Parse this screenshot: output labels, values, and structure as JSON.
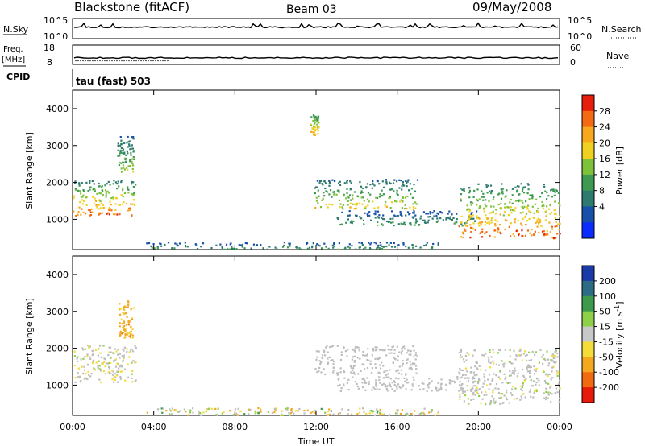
{
  "header": {
    "station": "Blackstone (fitACF)",
    "beam": "Beam 03",
    "date": "09/May/2008"
  },
  "strip_labels": {
    "nsky": "N.Sky",
    "nsearch": "N.Search",
    "freq_line1": "Freq.",
    "freq_line2": "[MHz]",
    "nave": "Nave",
    "cpid": "CPID",
    "cpid_value": "tau (fast) 503",
    "noise_left_top": "10^5",
    "noise_left_bottom": "10^0",
    "noise_right_top": "10^5",
    "noise_right_bottom": "10^0",
    "freq_left_top": "18",
    "freq_left_bottom": "8",
    "nave_right_top": "60",
    "nave_right_bottom": "0"
  },
  "colors": {
    "power_scale": [
      "#0a2cff",
      "#1650a8",
      "#2d7a6e",
      "#3e9a52",
      "#7ec23c",
      "#f0d020",
      "#f7a81c",
      "#f46a12",
      "#e81e0c"
    ],
    "velocity_scale": [
      "#1a3aa8",
      "#2b6c84",
      "#3d9a4c",
      "#8ed048",
      "#c8c8c8",
      "#f4dc3a",
      "#f4a820",
      "#f26a10",
      "#e81a0a"
    ],
    "ground_scatter": "#bdbdbd"
  },
  "chart_data": [
    {
      "type": "heatmap",
      "title": "Power",
      "xlabel": "",
      "ylabel": "Slant Range [km]",
      "x_ticks": [
        "00:00",
        "04:00",
        "08:00",
        "12:00",
        "16:00",
        "20:00",
        "00:00"
      ],
      "y_ticks": [
        "1000",
        "2000",
        "3000",
        "4000"
      ],
      "xlim": [
        0,
        24
      ],
      "ylim": [
        180,
        4500
      ],
      "colorbar": {
        "label": "Power [dB]",
        "ticks": [
          "4",
          "8",
          "12",
          "16",
          "20",
          "24",
          "28"
        ],
        "range": [
          0,
          30
        ]
      },
      "features": [
        {
          "name": "morning-arc",
          "t": [
            0.0,
            3.1
          ],
          "range_km": [
            1100,
            2100
          ],
          "power_db": [
            8,
            30
          ]
        },
        {
          "name": "high-range-streak",
          "t": [
            2.2,
            3.0
          ],
          "range_km": [
            2300,
            3300
          ],
          "power_db": [
            6,
            18
          ]
        },
        {
          "name": "noon-spike",
          "t": [
            11.7,
            12.1
          ],
          "range_km": [
            3300,
            3900
          ],
          "power_db": [
            10,
            24
          ]
        },
        {
          "name": "afternoon-band",
          "t": [
            11.9,
            17.0
          ],
          "range_km": [
            1300,
            2100
          ],
          "power_db": [
            6,
            22
          ]
        },
        {
          "name": "lower-bands",
          "t": [
            13.0,
            20.0
          ],
          "range_km": [
            850,
            1250
          ],
          "power_db": [
            4,
            14
          ]
        },
        {
          "name": "evening-band",
          "t": [
            19.0,
            24.0
          ],
          "range_km": [
            500,
            2000
          ],
          "power_db": [
            8,
            30
          ]
        },
        {
          "name": "near-range-strip",
          "t": [
            3.5,
            18.0
          ],
          "range_km": [
            200,
            400
          ],
          "power_db": [
            4,
            14
          ]
        }
      ]
    },
    {
      "type": "heatmap",
      "title": "Velocity",
      "xlabel": "Time UT",
      "ylabel": "Slant Range [km]",
      "x_ticks": [
        "00:00",
        "04:00",
        "08:00",
        "12:00",
        "16:00",
        "20:00",
        "00:00"
      ],
      "y_ticks": [
        "1000",
        "2000",
        "3000",
        "4000"
      ],
      "xlim": [
        0,
        24
      ],
      "ylim": [
        180,
        4500
      ],
      "colorbar": {
        "label": "Velocity [m s-1]",
        "ticks": [
          "200",
          "100",
          "50",
          "15",
          "-15",
          "-50",
          "-100",
          "-200"
        ],
        "range": [
          -250,
          250
        ]
      },
      "features": [
        {
          "name": "morning-arc",
          "t": [
            0.0,
            3.1
          ],
          "range_km": [
            1100,
            2100
          ],
          "velocity": [
            -30,
            20
          ]
        },
        {
          "name": "high-range-streak",
          "t": [
            2.2,
            3.0
          ],
          "range_km": [
            2300,
            3300
          ],
          "velocity": [
            -80,
            -20
          ]
        },
        {
          "name": "afternoon-band",
          "t": [
            11.9,
            17.0
          ],
          "range_km": [
            1300,
            2100
          ],
          "velocity": [
            -15,
            15
          ]
        },
        {
          "name": "lower-bands",
          "t": [
            13.0,
            20.0
          ],
          "range_km": [
            850,
            1250
          ],
          "velocity": [
            -15,
            15
          ]
        },
        {
          "name": "evening-band",
          "t": [
            19.0,
            24.0
          ],
          "range_km": [
            500,
            2000
          ],
          "velocity": [
            -20,
            20
          ]
        },
        {
          "name": "near-range-strip",
          "t": [
            3.5,
            18.0
          ],
          "range_km": [
            200,
            400
          ],
          "velocity": [
            -60,
            40
          ]
        }
      ]
    }
  ]
}
